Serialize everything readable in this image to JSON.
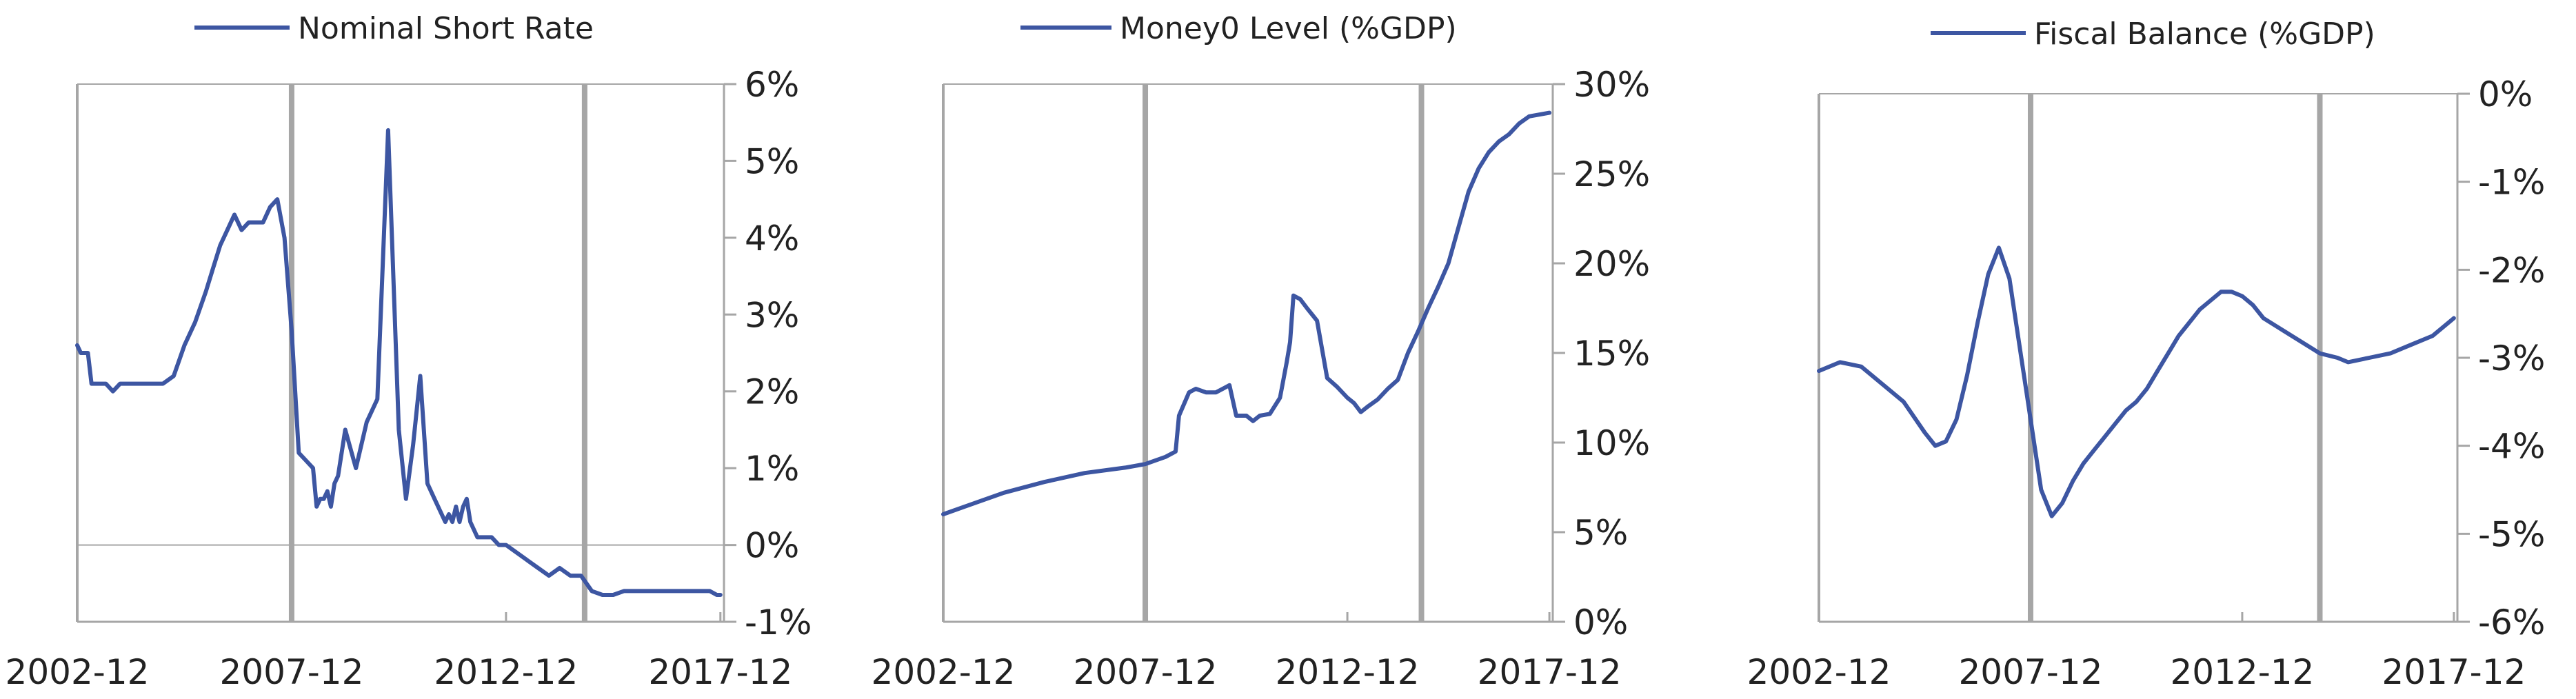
{
  "colors": {
    "series": "#3d56a2",
    "event_line": "#a6a6a6",
    "axis": "#a6a6a6"
  },
  "chart_data": [
    {
      "type": "line",
      "legend": "Nominal Short Rate",
      "legend_position": "top",
      "x_range": [
        "2002-12",
        "2018-01"
      ],
      "x_ticks": [
        "2002-12",
        "2007-12",
        "2012-12",
        "2017-12"
      ],
      "y_axis_side": "right",
      "ylim": [
        -1,
        6
      ],
      "y_ticks": [
        "6%",
        "5%",
        "4%",
        "3%",
        "2%",
        "1%",
        "0%",
        "-1%"
      ],
      "y_tick_values": [
        6,
        5,
        4,
        3,
        2,
        1,
        0,
        -1
      ],
      "event_lines": [
        "2007-12",
        "2014-10"
      ],
      "zero_line": true,
      "series": [
        {
          "x": [
            "2002-12",
            "2003-01",
            "2003-02",
            "2003-03",
            "2003-04",
            "2003-06",
            "2003-08",
            "2003-10",
            "2003-12",
            "2004-03",
            "2004-06",
            "2004-09",
            "2004-12",
            "2005-03",
            "2005-06",
            "2005-09",
            "2005-12",
            "2006-02",
            "2006-04",
            "2006-06",
            "2006-08",
            "2006-10",
            "2006-12",
            "2007-02",
            "2007-04",
            "2007-06",
            "2007-08",
            "2007-10",
            "2007-12",
            "2008-02",
            "2008-04",
            "2008-06",
            "2008-07",
            "2008-08",
            "2008-09",
            "2008-10",
            "2008-11",
            "2008-12",
            "2009-01",
            "2009-03",
            "2009-06",
            "2009-09",
            "2009-12",
            "2010-03",
            "2010-06",
            "2010-08",
            "2010-10",
            "2010-12",
            "2011-02",
            "2011-04",
            "2011-06",
            "2011-07",
            "2011-08",
            "2011-09",
            "2011-10",
            "2011-11",
            "2011-12",
            "2012-01",
            "2012-02",
            "2012-04",
            "2012-06",
            "2012-08",
            "2012-10",
            "2012-12",
            "2013-03",
            "2013-06",
            "2013-09",
            "2013-12",
            "2014-03",
            "2014-06",
            "2014-09",
            "2014-12",
            "2015-03",
            "2015-06",
            "2015-09",
            "2015-12",
            "2016-03",
            "2016-06",
            "2016-09",
            "2016-12",
            "2017-03",
            "2017-06",
            "2017-09",
            "2017-11",
            "2017-12"
          ],
          "y": [
            2.6,
            2.5,
            2.5,
            2.5,
            2.1,
            2.1,
            2.1,
            2.0,
            2.1,
            2.1,
            2.1,
            2.1,
            2.1,
            2.2,
            2.6,
            2.9,
            3.3,
            3.6,
            3.9,
            4.1,
            4.3,
            4.1,
            4.2,
            4.2,
            4.2,
            4.4,
            4.5,
            4.0,
            2.8,
            1.2,
            1.1,
            1.0,
            0.5,
            0.6,
            0.6,
            0.7,
            0.5,
            0.8,
            0.9,
            1.5,
            1.0,
            1.6,
            1.9,
            5.4,
            1.5,
            0.6,
            1.3,
            2.2,
            0.8,
            0.6,
            0.4,
            0.3,
            0.4,
            0.3,
            0.5,
            0.3,
            0.5,
            0.6,
            0.3,
            0.1,
            0.1,
            0.1,
            0.0,
            0.0,
            -0.1,
            -0.2,
            -0.3,
            -0.4,
            -0.3,
            -0.4,
            -0.4,
            -0.6,
            -0.65,
            -0.65,
            -0.6,
            -0.6,
            -0.6,
            -0.6,
            -0.6,
            -0.6,
            -0.6,
            -0.6,
            -0.6,
            -0.65,
            -0.65
          ]
        }
      ]
    },
    {
      "type": "line",
      "legend": "Money0 Level (%GDP)",
      "legend_position": "top",
      "x_range": [
        "2002-12",
        "2018-01"
      ],
      "x_ticks": [
        "2002-12",
        "2007-12",
        "2012-12",
        "2017-12"
      ],
      "y_axis_side": "right",
      "ylim": [
        0,
        30
      ],
      "y_ticks": [
        "30%",
        "25%",
        "20%",
        "15%",
        "10%",
        "5%",
        "0%"
      ],
      "y_tick_values": [
        30,
        25,
        20,
        15,
        10,
        5,
        0
      ],
      "event_lines": [
        "2007-12",
        "2014-10"
      ],
      "zero_line": false,
      "series": [
        {
          "x": [
            "2002-12",
            "2003-06",
            "2004-06",
            "2005-06",
            "2006-06",
            "2007-06",
            "2007-12",
            "2008-06",
            "2008-09",
            "2008-10",
            "2009-01",
            "2009-03",
            "2009-06",
            "2009-09",
            "2010-01",
            "2010-03",
            "2010-06",
            "2010-08",
            "2010-10",
            "2011-01",
            "2011-04",
            "2011-06",
            "2011-07",
            "2011-08",
            "2011-10",
            "2011-12",
            "2012-03",
            "2012-06",
            "2012-09",
            "2012-12",
            "2013-02",
            "2013-04",
            "2013-06",
            "2013-09",
            "2013-12",
            "2014-03",
            "2014-06",
            "2014-09",
            "2014-12",
            "2015-03",
            "2015-06",
            "2015-09",
            "2015-12",
            "2016-03",
            "2016-06",
            "2016-09",
            "2016-12",
            "2017-03",
            "2017-06",
            "2017-09",
            "2017-12"
          ],
          "y": [
            6.0,
            6.4,
            7.2,
            7.8,
            8.3,
            8.6,
            8.8,
            9.2,
            9.5,
            11.5,
            12.8,
            13.0,
            12.8,
            12.8,
            13.2,
            11.5,
            11.5,
            11.2,
            11.5,
            11.6,
            12.5,
            14.5,
            15.6,
            18.2,
            18.0,
            17.5,
            16.8,
            13.6,
            13.1,
            12.5,
            12.2,
            11.7,
            12.0,
            12.4,
            13.0,
            13.5,
            15.0,
            16.2,
            17.5,
            18.7,
            20.0,
            22.0,
            24.0,
            25.3,
            26.2,
            26.8,
            27.2,
            27.8,
            28.2,
            28.3,
            28.4
          ]
        }
      ]
    },
    {
      "type": "line",
      "legend": "Fiscal Balance (%GDP)",
      "legend_position": "top",
      "x_range": [
        "2002-12",
        "2018-01"
      ],
      "x_ticks": [
        "2002-12",
        "2007-12",
        "2012-12",
        "2017-12"
      ],
      "y_axis_side": "right",
      "ylim": [
        -6,
        0
      ],
      "y_ticks": [
        "0%",
        "-1%",
        "-2%",
        "-3%",
        "-4%",
        "-5%",
        "-6%"
      ],
      "y_tick_values": [
        0,
        -1,
        -2,
        -3,
        -4,
        -5,
        -6
      ],
      "event_lines": [
        "2007-12",
        "2014-10"
      ],
      "zero_line": false,
      "series": [
        {
          "x": [
            "2002-12",
            "2003-06",
            "2003-12",
            "2004-06",
            "2004-12",
            "2005-06",
            "2005-09",
            "2005-12",
            "2006-03",
            "2006-06",
            "2006-09",
            "2006-12",
            "2007-03",
            "2007-06",
            "2007-09",
            "2007-12",
            "2008-03",
            "2008-06",
            "2008-09",
            "2008-12",
            "2009-03",
            "2009-06",
            "2009-09",
            "2009-12",
            "2010-03",
            "2010-06",
            "2010-09",
            "2010-12",
            "2011-03",
            "2011-06",
            "2011-09",
            "2011-12",
            "2012-03",
            "2012-06",
            "2012-09",
            "2012-12",
            "2013-03",
            "2013-06",
            "2013-12",
            "2014-06",
            "2014-10",
            "2015-03",
            "2015-06",
            "2015-12",
            "2016-06",
            "2016-12",
            "2017-06",
            "2017-12"
          ],
          "y": [
            -3.15,
            -3.05,
            -3.1,
            -3.3,
            -3.5,
            -3.85,
            -4.0,
            -3.95,
            -3.7,
            -3.2,
            -2.6,
            -2.05,
            -1.75,
            -2.1,
            -2.9,
            -3.7,
            -4.5,
            -4.8,
            -4.65,
            -4.4,
            -4.2,
            -4.05,
            -3.9,
            -3.75,
            -3.6,
            -3.5,
            -3.35,
            -3.15,
            -2.95,
            -2.75,
            -2.6,
            -2.45,
            -2.35,
            -2.25,
            -2.25,
            -2.3,
            -2.4,
            -2.55,
            -2.7,
            -2.85,
            -2.95,
            -3.0,
            -3.05,
            -3.0,
            -2.95,
            -2.85,
            -2.75,
            -2.55
          ]
        }
      ]
    }
  ]
}
